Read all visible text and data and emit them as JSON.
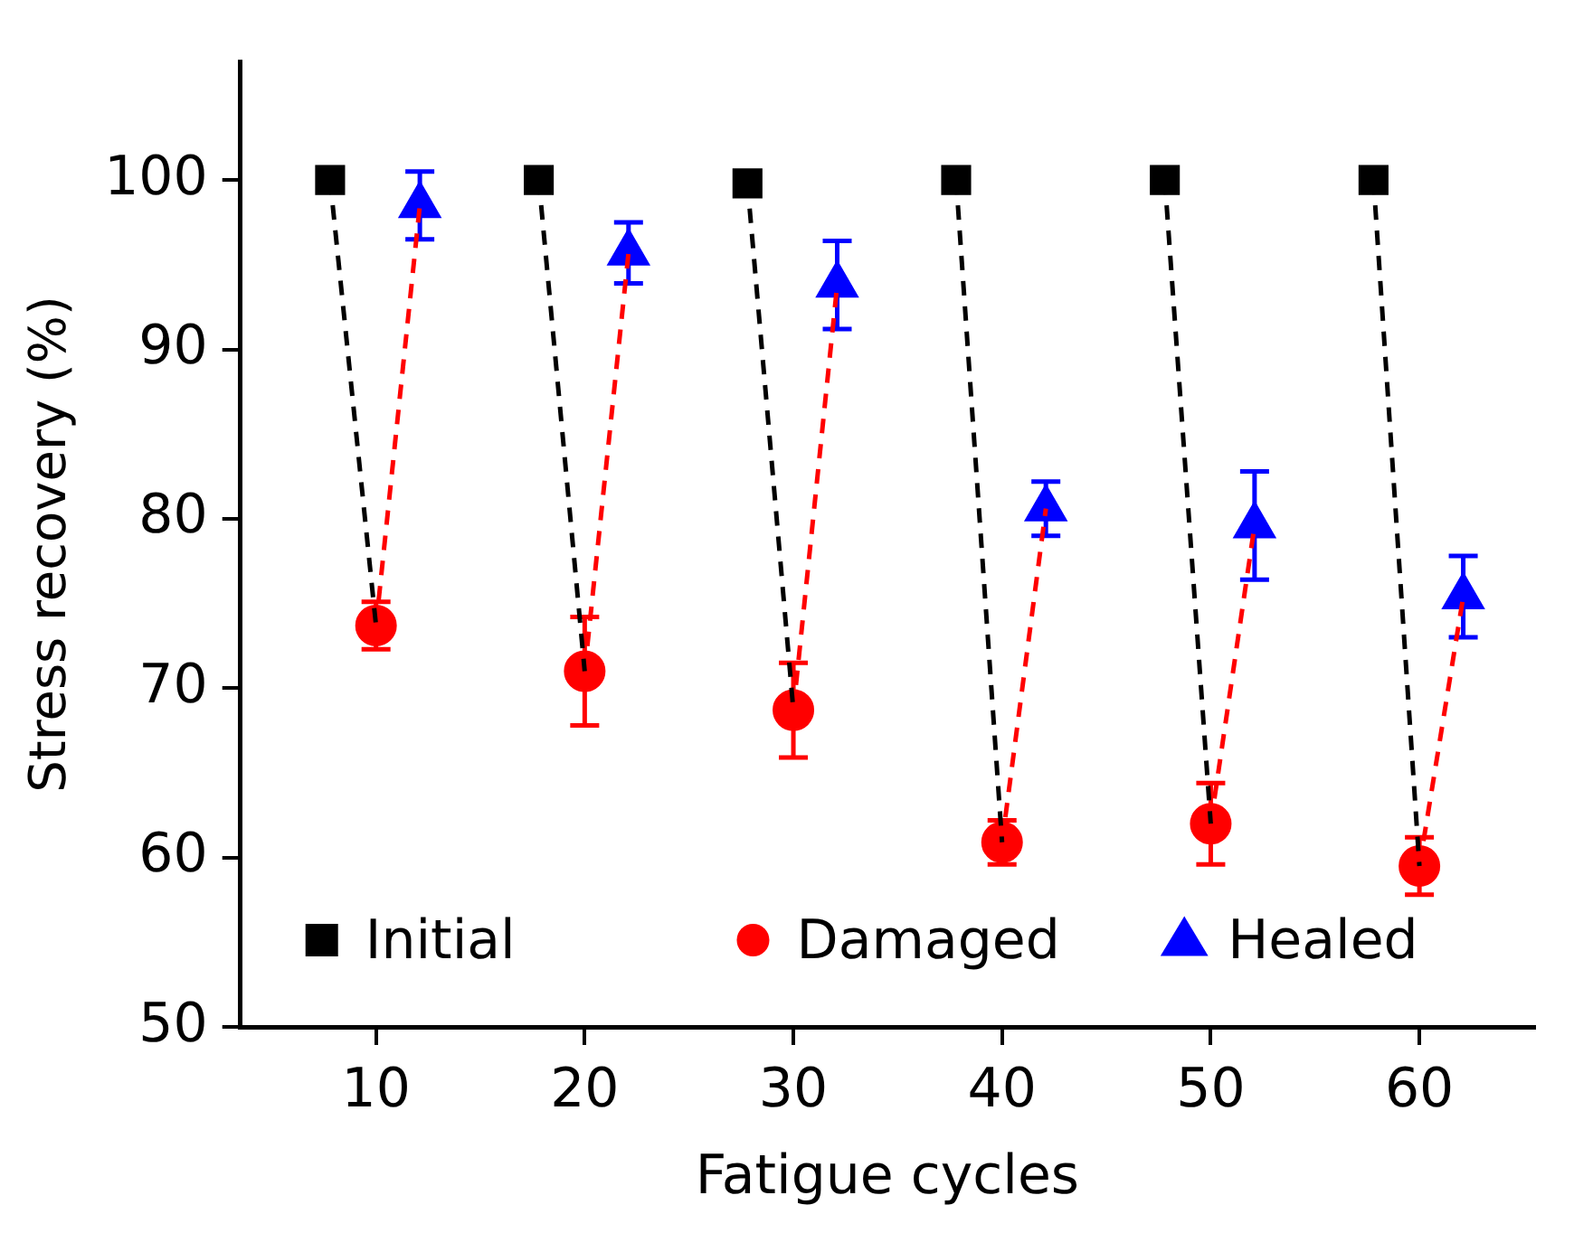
{
  "chart_data": {
    "type": "scatter",
    "xlabel": "Fatigue cycles",
    "ylabel": "Stress recovery (%)",
    "xlim": [
      3.5,
      65.5
    ],
    "xticks": [
      10,
      20,
      30,
      40,
      50,
      60
    ],
    "ylim": [
      50,
      107
    ],
    "yticks": [
      50,
      60,
      70,
      80,
      90,
      100
    ],
    "grid": false,
    "legend": "bottom",
    "series": [
      {
        "name": "Initial",
        "color": "#000000",
        "marker": "square",
        "x": [
          7.8,
          17.8,
          27.8,
          37.8,
          47.8,
          57.8
        ],
        "values": [
          100,
          100,
          99.8,
          100,
          100,
          100
        ]
      },
      {
        "name": "Damaged",
        "color": "#ff0000",
        "marker": "circle",
        "x": [
          10,
          20,
          30,
          40,
          50,
          60
        ],
        "values": [
          73.7,
          71.0,
          68.7,
          60.9,
          62.0,
          59.5
        ],
        "errors": [
          1.4,
          3.2,
          2.8,
          1.3,
          2.4,
          1.7
        ]
      },
      {
        "name": "Healed",
        "color": "#0000ff",
        "marker": "triangle",
        "x": [
          12.1,
          22.1,
          32.1,
          42.1,
          52.1,
          62.1
        ],
        "values": [
          98.5,
          95.7,
          93.8,
          80.6,
          79.6,
          75.4
        ],
        "errors": [
          2.0,
          1.8,
          2.6,
          1.6,
          3.2,
          2.4
        ]
      },
      {
        "type": "line",
        "color": "#000000",
        "line_style": "dashed",
        "x": [
          7.8,
          10,
          null,
          17.8,
          20,
          null,
          27.8,
          30,
          null,
          37.8,
          40,
          null,
          47.8,
          50,
          null,
          57.8,
          60
        ],
        "values": [
          100,
          73.7,
          null,
          100,
          71.0,
          null,
          99.8,
          68.7,
          null,
          100,
          60.9,
          null,
          100,
          62.0,
          null,
          100,
          59.5
        ]
      },
      {
        "type": "line",
        "color": "#ff0000",
        "line_style": "dashed",
        "x": [
          10,
          12.1,
          null,
          20,
          22.1,
          null,
          30,
          32.1,
          null,
          40,
          42.1,
          null,
          50,
          52.1,
          null,
          60,
          62.1
        ],
        "values": [
          73.7,
          98.5,
          null,
          71.0,
          95.7,
          null,
          68.7,
          93.8,
          null,
          60.9,
          80.6,
          null,
          62.0,
          79.6,
          null,
          59.5,
          75.4
        ]
      }
    ]
  }
}
